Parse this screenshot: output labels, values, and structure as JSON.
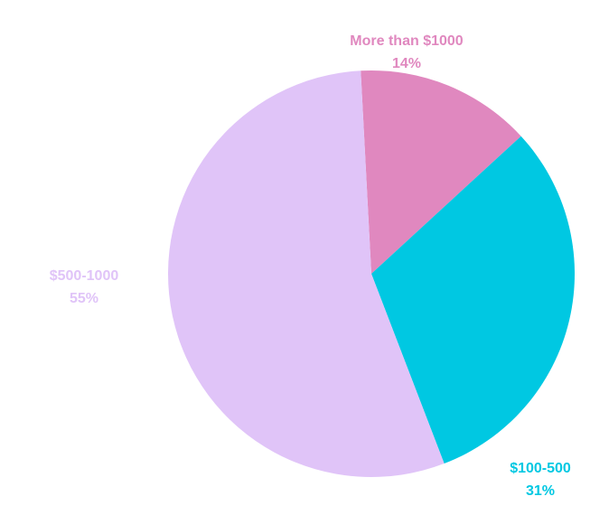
{
  "chart_data": {
    "type": "pie",
    "categories": [
      "More than $1000",
      "$100-500",
      "$500-1000"
    ],
    "values": [
      14,
      31,
      55
    ],
    "value_labels": [
      "14%",
      "31%",
      "55%"
    ],
    "colors": [
      "#e088bf",
      "#00c8e2",
      "#e0c4f8"
    ]
  }
}
